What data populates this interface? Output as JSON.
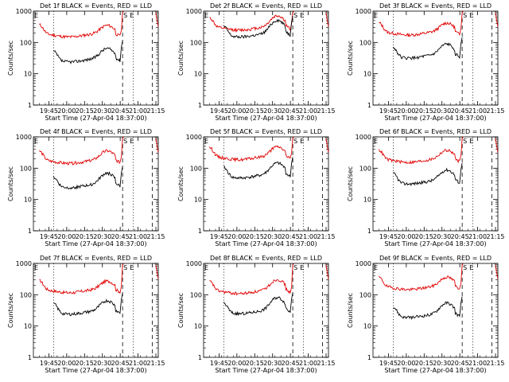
{
  "figure": {
    "panel_count": 9,
    "colors": {
      "events": "#000000",
      "lld": "#e00000",
      "axis": "#000000",
      "background": "#ffffff"
    }
  },
  "chart_data": [
    {
      "type": "line",
      "title": "Det 1f BLACK = Events, RED = LLD",
      "xlabel": "Start Time (27-Apr-04 18:37:00)",
      "ylabel": "Counts/sec",
      "y_scale": "log",
      "ylim": [
        1,
        1000
      ],
      "y_ticks": [
        "1",
        "10",
        "100",
        "1000"
      ],
      "x_ticks": [
        "19:45",
        "20:00",
        "20:15",
        "20:30",
        "20:45",
        "21:00",
        "21:15"
      ],
      "markers": [
        "S",
        "E"
      ],
      "series": []
    },
    {
      "type": "line",
      "title": "Det 2f BLACK = Events, RED = LLD",
      "xlabel": "Start Time (27-Apr-04 18:37:00)",
      "ylabel": "Counts/sec",
      "y_scale": "log",
      "ylim": [
        1,
        1000
      ],
      "y_ticks": [
        "1",
        "10",
        "100",
        "1000"
      ],
      "x_ticks": [
        "19:45",
        "20:00",
        "20:15",
        "20:30",
        "20:45",
        "21:00",
        "21:15"
      ],
      "markers": [
        "S",
        "E"
      ],
      "series": []
    },
    {
      "type": "line",
      "title": "Det 3f BLACK = Events, RED = LLD",
      "xlabel": "Start Time (27-Apr-04 18:37:00)",
      "ylabel": "Counts/sec",
      "y_scale": "log",
      "ylim": [
        1,
        1000
      ],
      "y_ticks": [
        "1",
        "10",
        "100",
        "1000"
      ],
      "x_ticks": [
        "19:45",
        "20:00",
        "20:15",
        "20:30",
        "20:45",
        "21:00",
        "21:15"
      ],
      "markers": [
        "S",
        "E"
      ],
      "series": []
    },
    {
      "type": "line",
      "title": "Det 4f BLACK = Events, RED = LLD",
      "xlabel": "Start Time (27-Apr-04 18:37:00)",
      "ylabel": "Counts/sec",
      "y_scale": "log",
      "ylim": [
        1,
        1000
      ],
      "y_ticks": [
        "1",
        "10",
        "100",
        "1000"
      ],
      "x_ticks": [
        "19:45",
        "20:00",
        "20:15",
        "20:30",
        "20:45",
        "21:00",
        "21:15"
      ],
      "markers": [
        "S",
        "E"
      ],
      "series": []
    },
    {
      "type": "line",
      "title": "Det 5f BLACK = Events, RED = LLD",
      "xlabel": "Start Time (27-Apr-04 18:37:00)",
      "ylabel": "Counts/sec",
      "y_scale": "log",
      "ylim": [
        1,
        1000
      ],
      "y_ticks": [
        "1",
        "10",
        "100",
        "1000"
      ],
      "x_ticks": [
        "19:45",
        "20:00",
        "20:15",
        "20:30",
        "20:45",
        "21:00",
        "21:15"
      ],
      "markers": [
        "S",
        "E"
      ],
      "series": []
    },
    {
      "type": "line",
      "title": "Det 6f BLACK = Events, RED = LLD",
      "xlabel": "Start Time (27-Apr-04 18:37:00)",
      "ylabel": "Counts/sec",
      "y_scale": "log",
      "ylim": [
        1,
        1000
      ],
      "y_ticks": [
        "1",
        "10",
        "100",
        "1000"
      ],
      "x_ticks": [
        "19:45",
        "20:00",
        "20:15",
        "20:30",
        "20:45",
        "21:00",
        "21:15"
      ],
      "markers": [
        "S",
        "E"
      ],
      "series": []
    },
    {
      "type": "line",
      "title": "Det 7f BLACK = Events, RED = LLD",
      "xlabel": "Start Time (27-Apr-04 18:37:00)",
      "ylabel": "Counts/sec",
      "y_scale": "log",
      "ylim": [
        1,
        1000
      ],
      "y_ticks": [
        "1",
        "10",
        "100",
        "1000"
      ],
      "x_ticks": [
        "19:45",
        "20:00",
        "20:15",
        "20:30",
        "20:45",
        "21:00",
        "21:15"
      ],
      "markers": [
        "S",
        "E"
      ],
      "series": []
    },
    {
      "type": "line",
      "title": "Det 8f BLACK = Events, RED = LLD",
      "xlabel": "Start Time (27-Apr-04 18:37:00)",
      "ylabel": "Counts/sec",
      "y_scale": "log",
      "ylim": [
        1,
        1000
      ],
      "y_ticks": [
        "1",
        "10",
        "100",
        "1000"
      ],
      "x_ticks": [
        "19:45",
        "20:00",
        "20:15",
        "20:30",
        "20:45",
        "21:00",
        "21:15"
      ],
      "markers": [
        "S",
        "E"
      ],
      "series": []
    },
    {
      "type": "line",
      "title": "Det 9f BLACK = Events, RED = LLD",
      "xlabel": "Start Time (27-Apr-04 18:37:00)",
      "ylabel": "Counts/sec",
      "y_scale": "log",
      "ylim": [
        1,
        1000
      ],
      "y_ticks": [
        "1",
        "10",
        "100",
        "1000"
      ],
      "x_ticks": [
        "19:45",
        "20:00",
        "20:15",
        "20:30",
        "20:45",
        "21:00",
        "21:15"
      ],
      "markers": [
        "S",
        "E"
      ],
      "series": []
    }
  ]
}
